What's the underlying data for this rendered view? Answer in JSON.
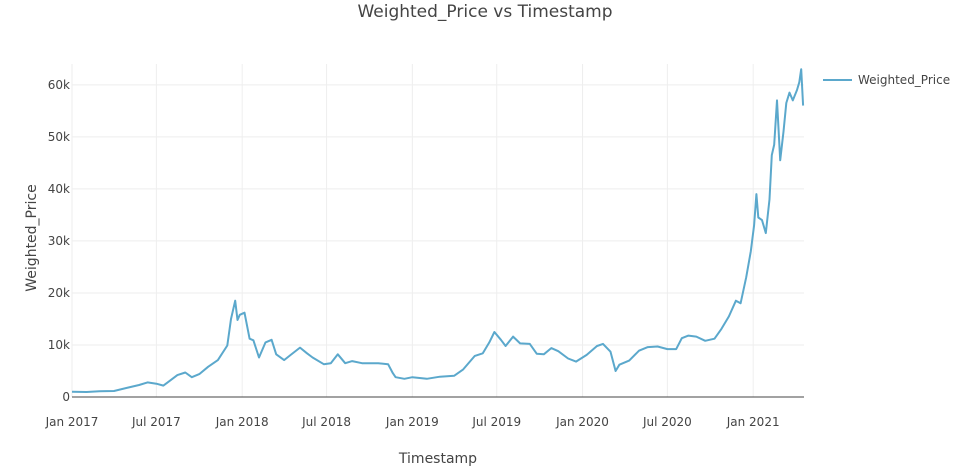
{
  "chart_data": {
    "type": "line",
    "title": "Weighted_Price vs Timestamp",
    "xlabel": "Timestamp",
    "ylabel": "Weighted_Price",
    "xlim": [
      "2017-01-01",
      "2021-04-20"
    ],
    "ylim": [
      0,
      64000
    ],
    "x_ticks": [
      {
        "value": "2017-01-01",
        "label": "Jan 2017"
      },
      {
        "value": "2017-07-01",
        "label": "Jul 2017"
      },
      {
        "value": "2018-01-01",
        "label": "Jan 2018"
      },
      {
        "value": "2018-07-01",
        "label": "Jul 2018"
      },
      {
        "value": "2019-01-01",
        "label": "Jan 2019"
      },
      {
        "value": "2019-07-01",
        "label": "Jul 2019"
      },
      {
        "value": "2020-01-01",
        "label": "Jan 2020"
      },
      {
        "value": "2020-07-01",
        "label": "Jul 2020"
      },
      {
        "value": "2021-01-01",
        "label": "Jan 2021"
      }
    ],
    "y_ticks": [
      {
        "value": 0,
        "label": "0"
      },
      {
        "value": 10000,
        "label": "10k"
      },
      {
        "value": 20000,
        "label": "20k"
      },
      {
        "value": 30000,
        "label": "30k"
      },
      {
        "value": 40000,
        "label": "40k"
      },
      {
        "value": 50000,
        "label": "50k"
      },
      {
        "value": 60000,
        "label": "60k"
      }
    ],
    "grid": true,
    "legend_position": "top-right",
    "series": [
      {
        "name": "Weighted_Price",
        "color": "#5ba8cc",
        "x": [
          "2017-01-01",
          "2017-02-01",
          "2017-03-01",
          "2017-04-01",
          "2017-05-01",
          "2017-05-25",
          "2017-06-12",
          "2017-07-01",
          "2017-07-16",
          "2017-08-15",
          "2017-09-01",
          "2017-09-15",
          "2017-10-01",
          "2017-10-20",
          "2017-11-10",
          "2017-11-30",
          "2017-12-08",
          "2017-12-17",
          "2017-12-22",
          "2017-12-27",
          "2018-01-06",
          "2018-01-17",
          "2018-01-25",
          "2018-02-06",
          "2018-02-20",
          "2018-03-05",
          "2018-03-15",
          "2018-04-01",
          "2018-04-15",
          "2018-05-05",
          "2018-05-20",
          "2018-06-01",
          "2018-06-25",
          "2018-07-10",
          "2018-07-25",
          "2018-08-10",
          "2018-08-25",
          "2018-09-15",
          "2018-10-01",
          "2018-10-20",
          "2018-11-10",
          "2018-11-20",
          "2018-11-26",
          "2018-12-15",
          "2019-01-01",
          "2019-02-01",
          "2019-03-01",
          "2019-04-01",
          "2019-04-20",
          "2019-05-15",
          "2019-06-01",
          "2019-06-15",
          "2019-06-26",
          "2019-07-10",
          "2019-07-20",
          "2019-08-05",
          "2019-08-20",
          "2019-09-10",
          "2019-09-25",
          "2019-10-10",
          "2019-10-26",
          "2019-11-10",
          "2019-12-01",
          "2019-12-18",
          "2020-01-10",
          "2020-02-01",
          "2020-02-14",
          "2020-03-01",
          "2020-03-12",
          "2020-03-20",
          "2020-04-10",
          "2020-05-01",
          "2020-05-20",
          "2020-06-10",
          "2020-07-01",
          "2020-07-20",
          "2020-08-01",
          "2020-08-15",
          "2020-09-01",
          "2020-09-20",
          "2020-10-10",
          "2020-10-25",
          "2020-11-10",
          "2020-11-25",
          "2020-12-05",
          "2020-12-17",
          "2020-12-27",
          "2021-01-03",
          "2021-01-08",
          "2021-01-12",
          "2021-01-20",
          "2021-01-28",
          "2021-02-05",
          "2021-02-10",
          "2021-02-15",
          "2021-02-21",
          "2021-02-28",
          "2021-03-07",
          "2021-03-13",
          "2021-03-20",
          "2021-03-27",
          "2021-04-05",
          "2021-04-10",
          "2021-04-14",
          "2021-04-18"
        ],
        "values": [
          1000,
          970,
          1100,
          1150,
          1800,
          2300,
          2800,
          2550,
          2200,
          4200,
          4700,
          3800,
          4400,
          5800,
          7100,
          9900,
          15000,
          18500,
          14800,
          15800,
          16200,
          11200,
          10900,
          7600,
          10500,
          11000,
          8200,
          7100,
          8100,
          9500,
          8400,
          7600,
          6300,
          6500,
          8200,
          6500,
          6900,
          6500,
          6500,
          6500,
          6300,
          4600,
          3800,
          3500,
          3800,
          3500,
          3900,
          4100,
          5300,
          7900,
          8400,
          10500,
          12500,
          11000,
          9800,
          11600,
          10300,
          10200,
          8300,
          8200,
          9400,
          8800,
          7400,
          6800,
          8100,
          9800,
          10200,
          8700,
          5000,
          6200,
          7000,
          8900,
          9600,
          9700,
          9200,
          9200,
          11300,
          11800,
          11600,
          10800,
          11200,
          13100,
          15500,
          18500,
          18000,
          23000,
          28000,
          33000,
          39000,
          34500,
          34000,
          31500,
          38000,
          46500,
          48500,
          57000,
          45500,
          51000,
          56500,
          58500,
          57000,
          59000,
          60500,
          63000,
          56000
        ]
      }
    ]
  }
}
